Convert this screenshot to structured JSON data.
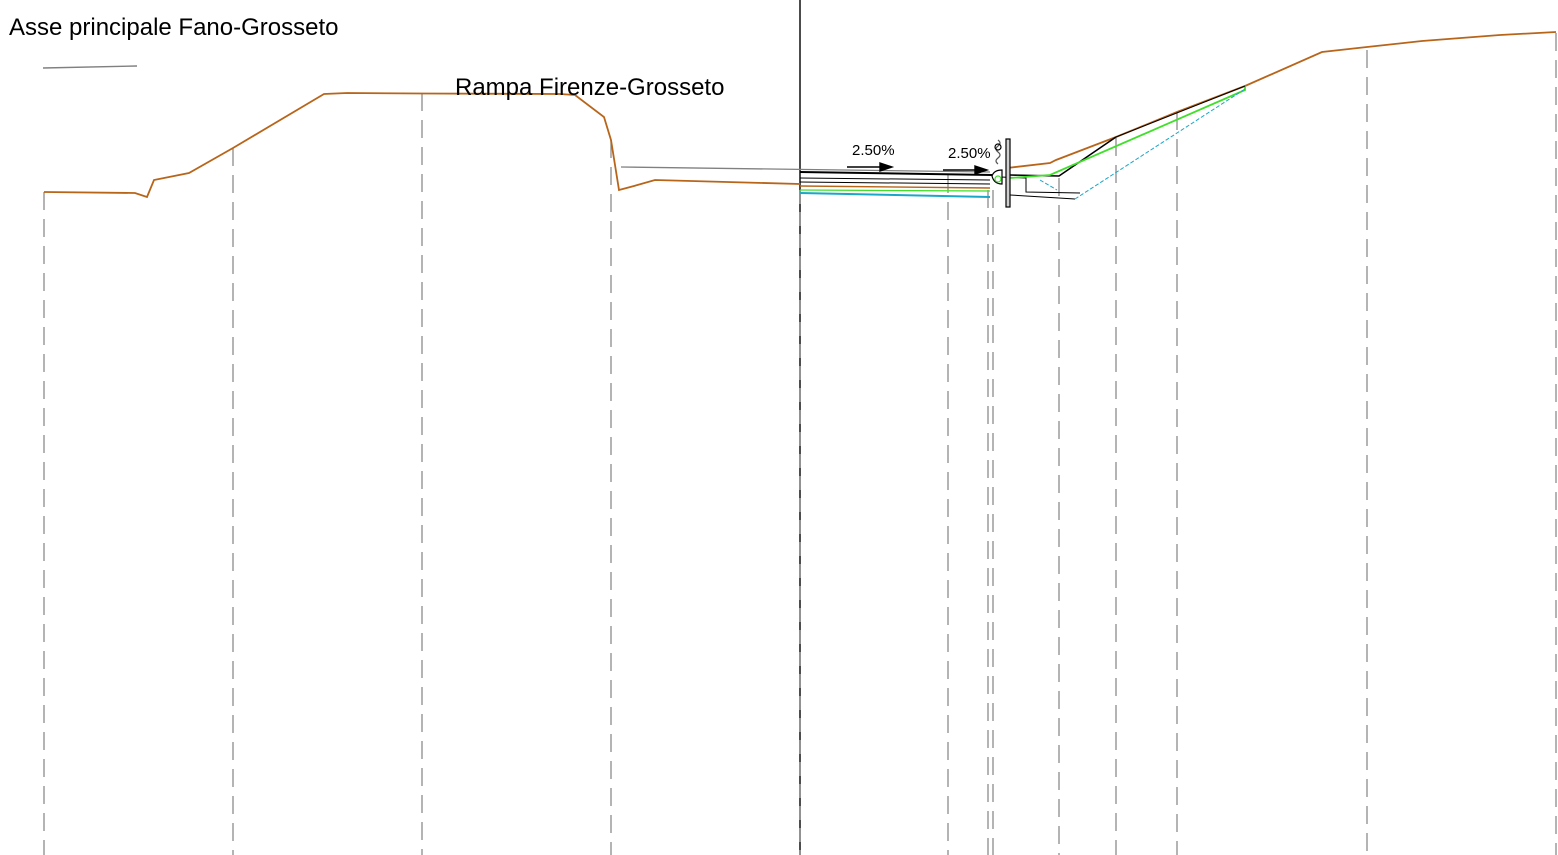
{
  "labels": {
    "main_axis": "Asse principale Fano-Grosseto",
    "ramp": "Rampa Firenze-Grosseto"
  },
  "slopes": [
    "2.50%",
    "2.50%"
  ],
  "colors": {
    "terrain": "#b8651a",
    "road_layers": "#000000",
    "cyan": "#1aa6c8",
    "green": "#3fe02a",
    "grey": "#808080",
    "dashes": "#8c8c8c",
    "background": "#ffffff"
  }
}
